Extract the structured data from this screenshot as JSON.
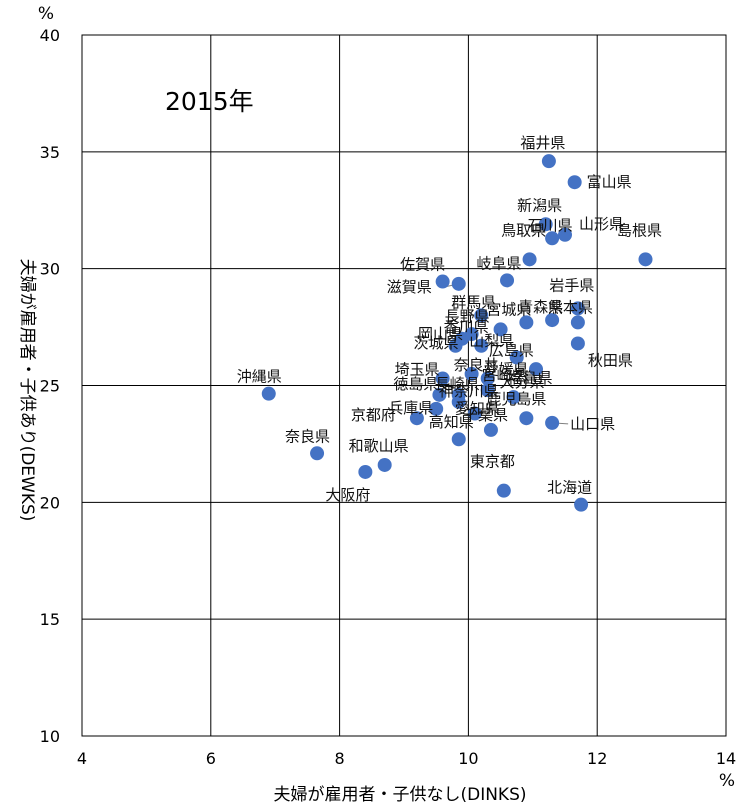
{
  "chart_data": {
    "type": "scatter",
    "annotation": "2015年",
    "xlabel": "夫婦が雇用者・子供なし(DINKS)",
    "ylabel": "夫婦が雇用者・子供あり(DEWKS)",
    "x_unit": "%",
    "y_unit": "%",
    "xlim": [
      4,
      14
    ],
    "ylim": [
      10,
      40
    ],
    "x_ticks": [
      "4",
      "6",
      "8",
      "10",
      "12",
      "14"
    ],
    "y_ticks": [
      "10",
      "15",
      "20",
      "25",
      "30",
      "35",
      "40"
    ],
    "grid": true,
    "marker_color": "#4472C4",
    "points": [
      {
        "label": "福井県",
        "x": 11.25,
        "y": 34.6
      },
      {
        "label": "富山県",
        "x": 11.65,
        "y": 33.7
      },
      {
        "label": "新潟県",
        "x": 11.2,
        "y": 31.9
      },
      {
        "label": "石川県",
        "x": 11.3,
        "y": 31.3
      },
      {
        "label": "山形県",
        "x": 11.5,
        "y": 31.45
      },
      {
        "label": "鳥取県",
        "x": 10.95,
        "y": 30.4
      },
      {
        "label": "島根県",
        "x": 12.75,
        "y": 30.4
      },
      {
        "label": "佐賀県",
        "x": 9.6,
        "y": 29.45
      },
      {
        "label": "岐阜県",
        "x": 10.6,
        "y": 29.5
      },
      {
        "label": "滋賀県",
        "x": 9.85,
        "y": 29.35
      },
      {
        "label": "岩手県",
        "x": 11.7,
        "y": 28.3
      },
      {
        "label": "群馬県",
        "x": 10.2,
        "y": 28.0
      },
      {
        "label": "宮城県",
        "x": 10.9,
        "y": 27.7
      },
      {
        "label": "青森県",
        "x": 11.3,
        "y": 27.8
      },
      {
        "label": "熊本県",
        "x": 11.7,
        "y": 27.7
      },
      {
        "label": "長野県",
        "x": 10.5,
        "y": 27.4
      },
      {
        "label": "岡山県",
        "x": 9.9,
        "y": 27.0
      },
      {
        "label": "香川県",
        "x": 10.05,
        "y": 27.2
      },
      {
        "label": "茨城県",
        "x": 9.8,
        "y": 26.7
      },
      {
        "label": "山梨県",
        "x": 10.2,
        "y": 26.7
      },
      {
        "label": "広島県",
        "x": 10.75,
        "y": 26.2
      },
      {
        "label": "福島県",
        "x": 11.05,
        "y": 25.7
      },
      {
        "label": "秋田県",
        "x": 11.7,
        "y": 26.8
      },
      {
        "label": "埼玉県",
        "x": 9.6,
        "y": 25.3
      },
      {
        "label": "奈良井",
        "x": 10.05,
        "y": 25.5
      },
      {
        "label": "愛媛県",
        "x": 10.3,
        "y": 25.3
      },
      {
        "label": "徳島県",
        "x": 9.55,
        "y": 24.6
      },
      {
        "label": "長崎県",
        "x": 9.85,
        "y": 24.6
      },
      {
        "label": "宮崎県",
        "x": 10.3,
        "y": 24.8
      },
      {
        "label": "大分県",
        "x": 10.7,
        "y": 24.5
      },
      {
        "label": "鹿児島県",
        "x": 10.9,
        "y": 23.6
      },
      {
        "label": "山口県",
        "x": 11.3,
        "y": 23.4
      },
      {
        "label": "兵庫県",
        "x": 9.5,
        "y": 24.0
      },
      {
        "label": "神奈川県",
        "x": 9.85,
        "y": 24.3
      },
      {
        "label": "愛知県",
        "x": 10.1,
        "y": 23.8
      },
      {
        "label": "京都府",
        "x": 9.2,
        "y": 23.6
      },
      {
        "label": "高知県",
        "x": 9.85,
        "y": 22.7
      },
      {
        "label": "千葉県",
        "x": 10.35,
        "y": 23.1
      },
      {
        "label": "沖縄県",
        "x": 6.9,
        "y": 24.65
      },
      {
        "label": "奈良県",
        "x": 7.65,
        "y": 22.1
      },
      {
        "label": "和歌山県",
        "x": 8.7,
        "y": 21.6
      },
      {
        "label": "大阪府",
        "x": 8.4,
        "y": 21.3
      },
      {
        "label": "東京都",
        "x": 10.55,
        "y": 20.5
      },
      {
        "label": "北海道",
        "x": 11.75,
        "y": 19.9
      }
    ]
  }
}
